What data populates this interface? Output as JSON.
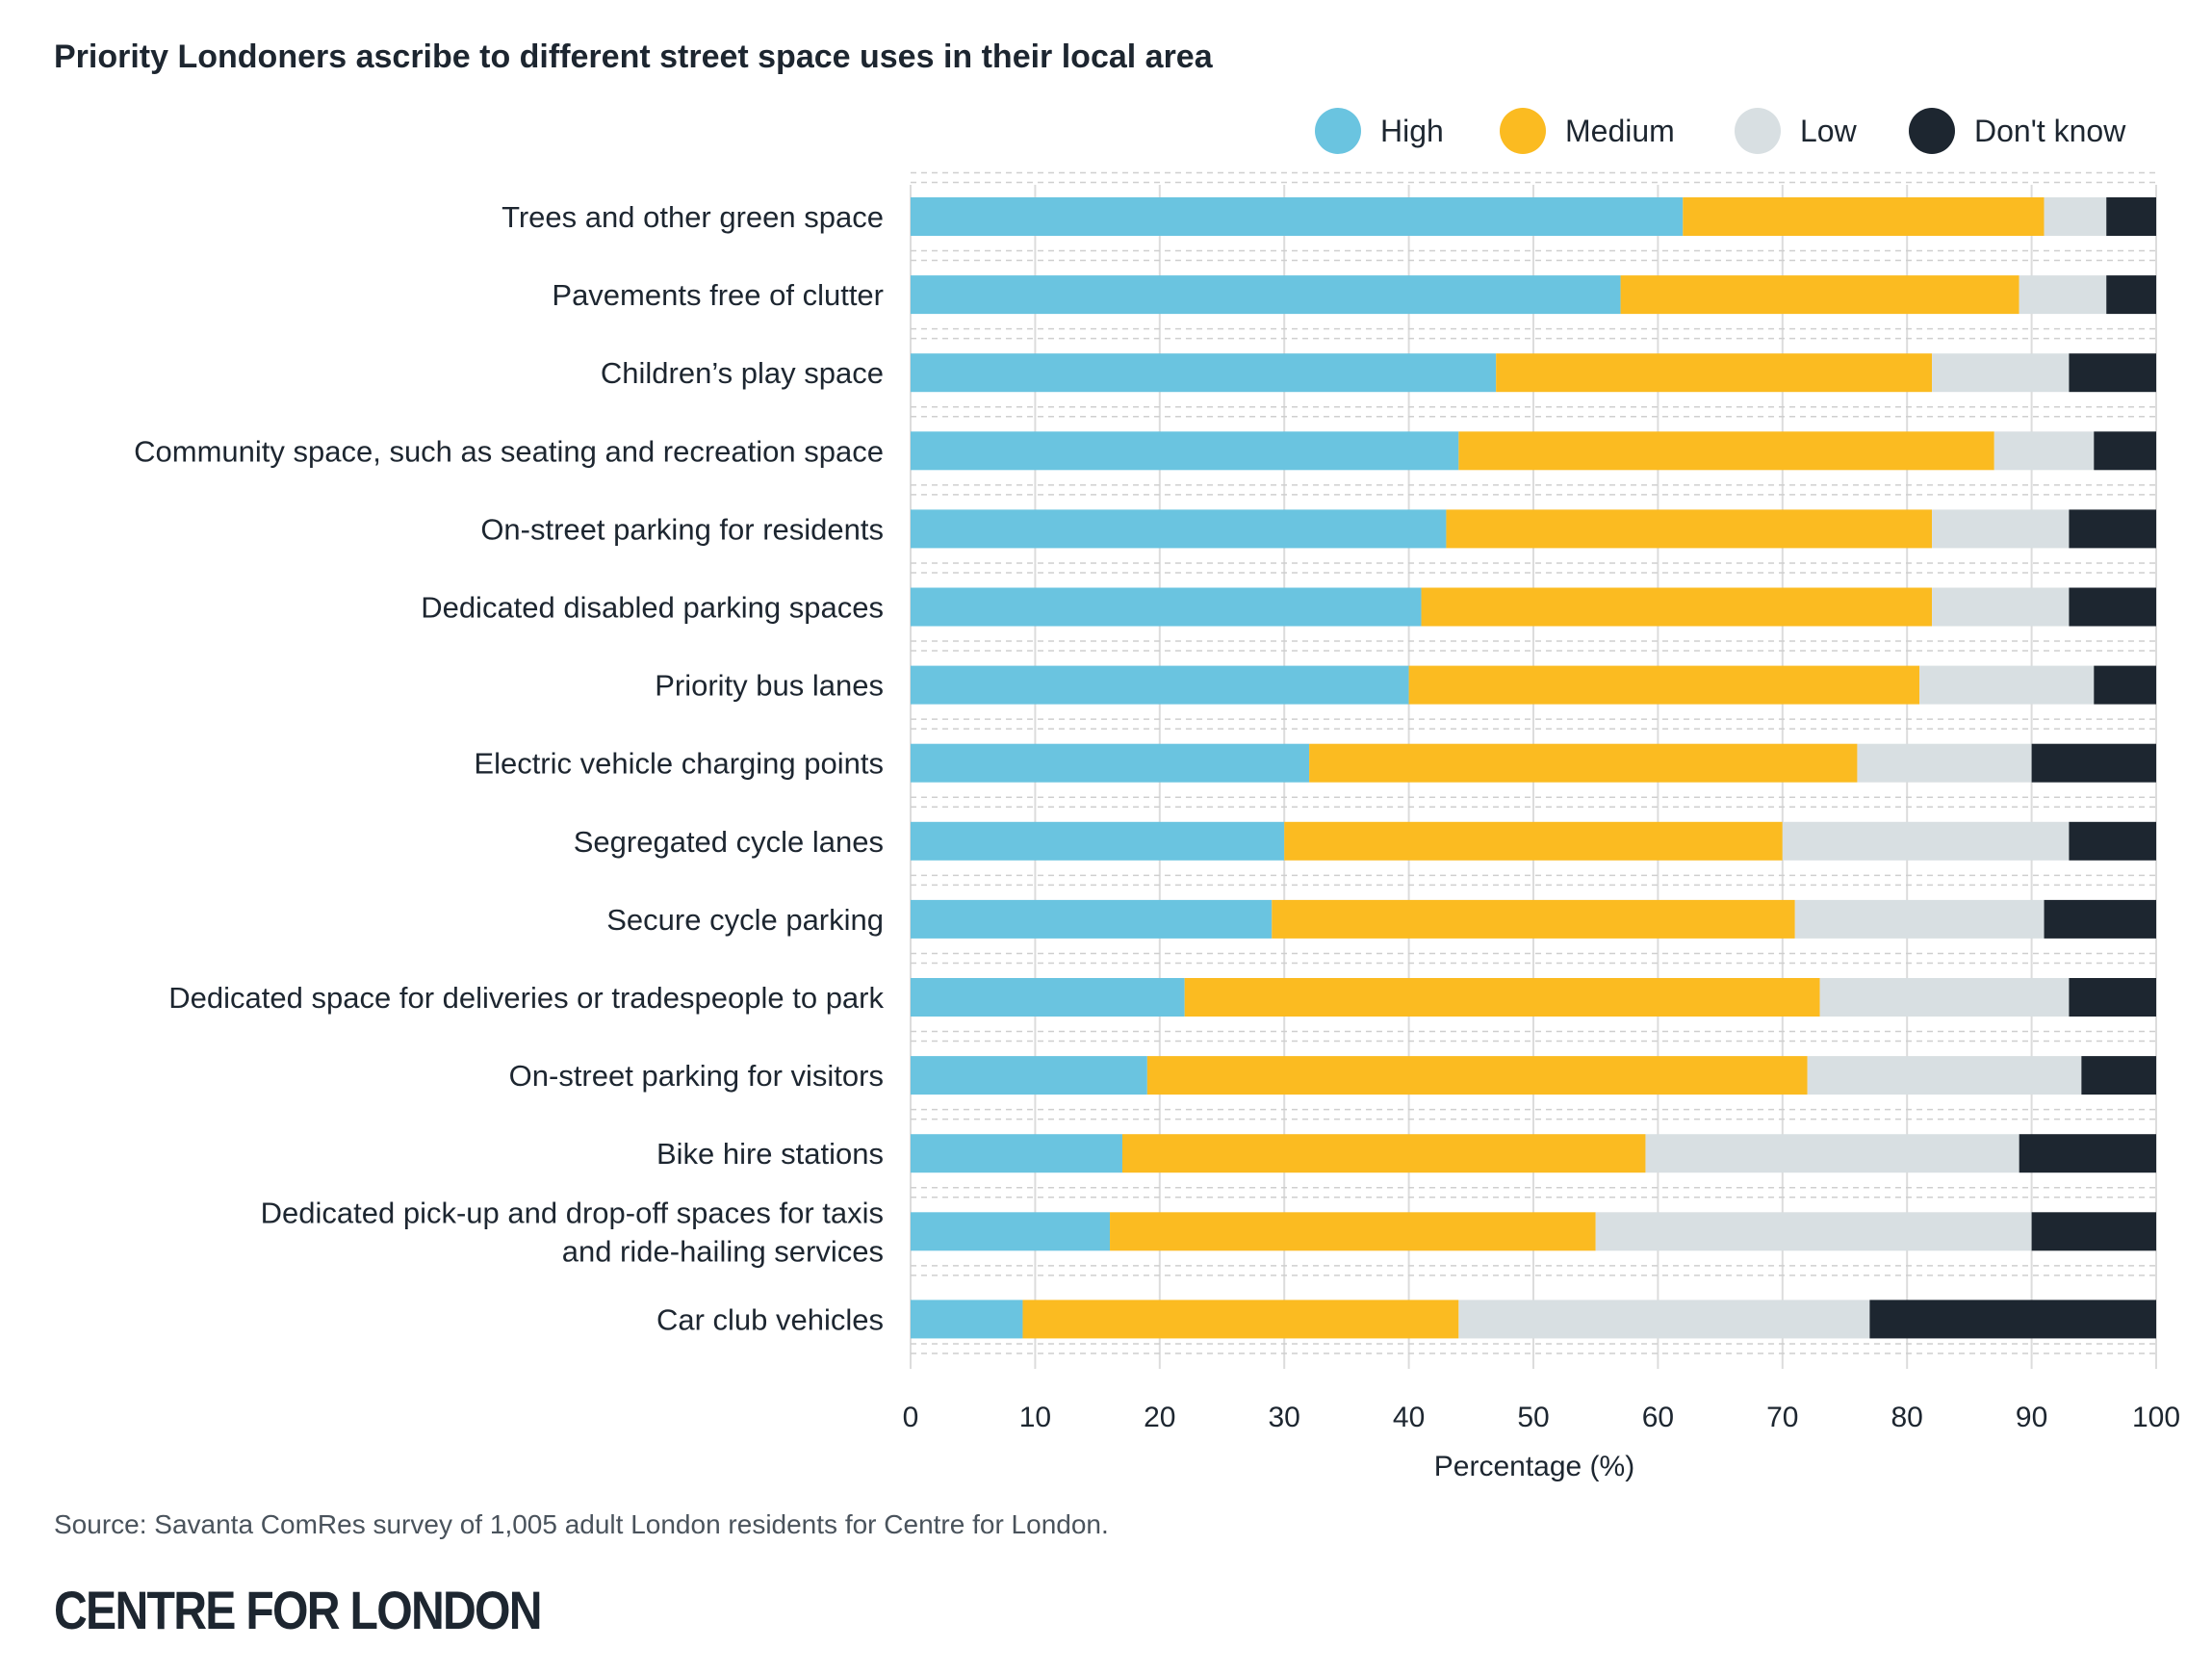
{
  "chart_data": {
    "type": "bar",
    "orientation": "horizontal",
    "stacked": true,
    "title": "Priority Londoners ascribe to different street space uses in their local area",
    "xlabel": "Percentage (%)",
    "ylabel": "",
    "xlim": [
      0,
      100
    ],
    "xticks": [
      "0",
      "10",
      "20",
      "30",
      "40",
      "50",
      "60",
      "70",
      "80",
      "90",
      "100"
    ],
    "grid": true,
    "legend_position": "top-right",
    "categories": [
      "Trees and other green space",
      "Pavements free of clutter",
      "Children’s play space",
      "Community space, such as seating and recreation space",
      "On-street parking for residents",
      "Dedicated disabled parking spaces",
      "Priority bus lanes",
      "Electric vehicle charging points",
      "Segregated cycle lanes",
      "Secure cycle parking",
      "Dedicated space for deliveries or tradespeople to park",
      "On-street parking for visitors",
      "Bike hire stations",
      "Dedicated pick-up and drop-off spaces for taxis and ride-hailing services",
      "Car club vehicles"
    ],
    "category_lines": [
      [
        "Trees and other green space"
      ],
      [
        "Pavements free of clutter"
      ],
      [
        "Children’s play space"
      ],
      [
        "Community space, such as seating and recreation space"
      ],
      [
        "On-street parking for residents"
      ],
      [
        "Dedicated disabled parking spaces"
      ],
      [
        "Priority bus lanes"
      ],
      [
        "Electric vehicle charging points"
      ],
      [
        "Segregated cycle lanes"
      ],
      [
        "Secure cycle parking"
      ],
      [
        "Dedicated space for deliveries or tradespeople to park"
      ],
      [
        "On-street parking for visitors"
      ],
      [
        "Bike hire stations"
      ],
      [
        "Dedicated pick-up and drop-off spaces for taxis",
        "and ride-hailing services"
      ],
      [
        "Car club vehicles"
      ]
    ],
    "series": [
      {
        "name": "High",
        "color": "#6ac4e0",
        "values": [
          62,
          57,
          47,
          44,
          43,
          41,
          40,
          32,
          30,
          29,
          22,
          19,
          17,
          16,
          9
        ]
      },
      {
        "name": "Medium",
        "color": "#fbbb21",
        "values": [
          29,
          32,
          35,
          43,
          39,
          41,
          41,
          44,
          40,
          42,
          51,
          53,
          42,
          39,
          35
        ]
      },
      {
        "name": "Low",
        "color": "#d8dfe2",
        "values": [
          5,
          7,
          11,
          8,
          11,
          11,
          14,
          14,
          23,
          20,
          20,
          22,
          30,
          35,
          33
        ]
      },
      {
        "name": "Don't know",
        "color": "#1d2630",
        "values": [
          4,
          4,
          7,
          5,
          7,
          7,
          5,
          10,
          7,
          9,
          7,
          6,
          11,
          10,
          23
        ]
      }
    ]
  },
  "source": "Source: Savanta ComRes survey of 1,005 adult London residents for Centre for London.",
  "logo": "CENTRE FOR LONDON"
}
